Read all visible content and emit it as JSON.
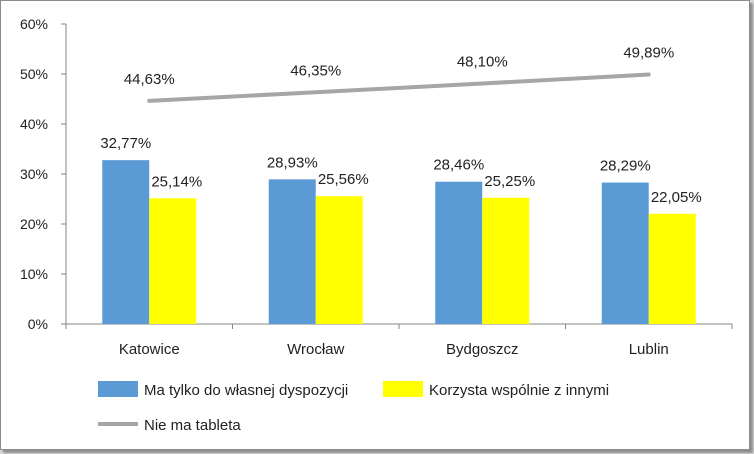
{
  "chart_data": {
    "type": "bar",
    "categories": [
      "Katowice",
      "Wrocław",
      "Bydgoszcz",
      "Lublin"
    ],
    "series": [
      {
        "name": "Ma tylko do własnej dyspozycji",
        "kind": "bar",
        "color": "#5b9bd5",
        "values": [
          32.77,
          28.93,
          28.46,
          28.29
        ],
        "labels": [
          "32,77%",
          "28,93%",
          "28,46%",
          "28,29%"
        ]
      },
      {
        "name": "Korzysta wspólnie z innymi",
        "kind": "bar",
        "color": "#ffff00",
        "values": [
          25.14,
          25.56,
          25.25,
          22.05
        ],
        "labels": [
          "25,14%",
          "25,56%",
          "25,25%",
          "22,05%"
        ]
      },
      {
        "name": "Nie ma tableta",
        "kind": "line",
        "color": "#a6a6a6",
        "values": [
          44.63,
          46.35,
          48.1,
          49.89
        ],
        "labels": [
          "44,63%",
          "46,35%",
          "48,10%",
          "49,89%"
        ]
      }
    ],
    "yticks": [
      "0%",
      "10%",
      "20%",
      "30%",
      "40%",
      "50%",
      "60%"
    ],
    "ylim": [
      0,
      60
    ],
    "grid": false,
    "legend": "bottom"
  }
}
